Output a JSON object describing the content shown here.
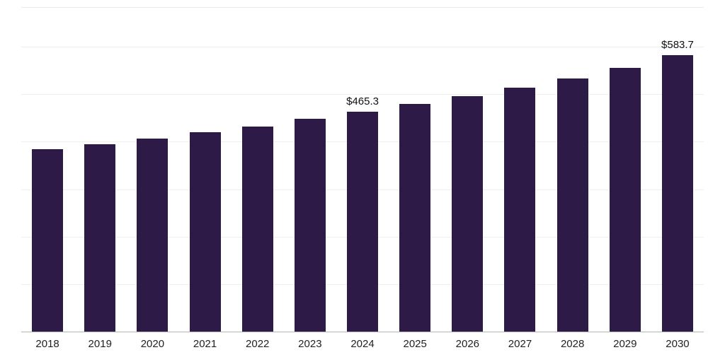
{
  "chart_data": {
    "type": "bar",
    "title": "",
    "xlabel": "",
    "ylabel": "",
    "categories": [
      "2018",
      "2019",
      "2020",
      "2021",
      "2022",
      "2023",
      "2024",
      "2025",
      "2026",
      "2027",
      "2028",
      "2029",
      "2030"
    ],
    "values": [
      385.4,
      395.8,
      407.7,
      420.9,
      433.1,
      449.4,
      465.3,
      480.6,
      497.0,
      515.1,
      534.2,
      556.5,
      583.7
    ],
    "point_labels": [
      "",
      "",
      "",
      "",
      "",
      "",
      "$465.3",
      "",
      "",
      "",
      "",
      "",
      "$583.7"
    ],
    "ylim": [
      0,
      685
    ],
    "gridline_step": 100,
    "grid": true,
    "legend_position": "none",
    "bar_color": "#2e1a47",
    "gridline_color": "#efefef",
    "axis_line_color": "#b5b5b5",
    "label_color": "#222222",
    "value_label_color": "#111111"
  }
}
